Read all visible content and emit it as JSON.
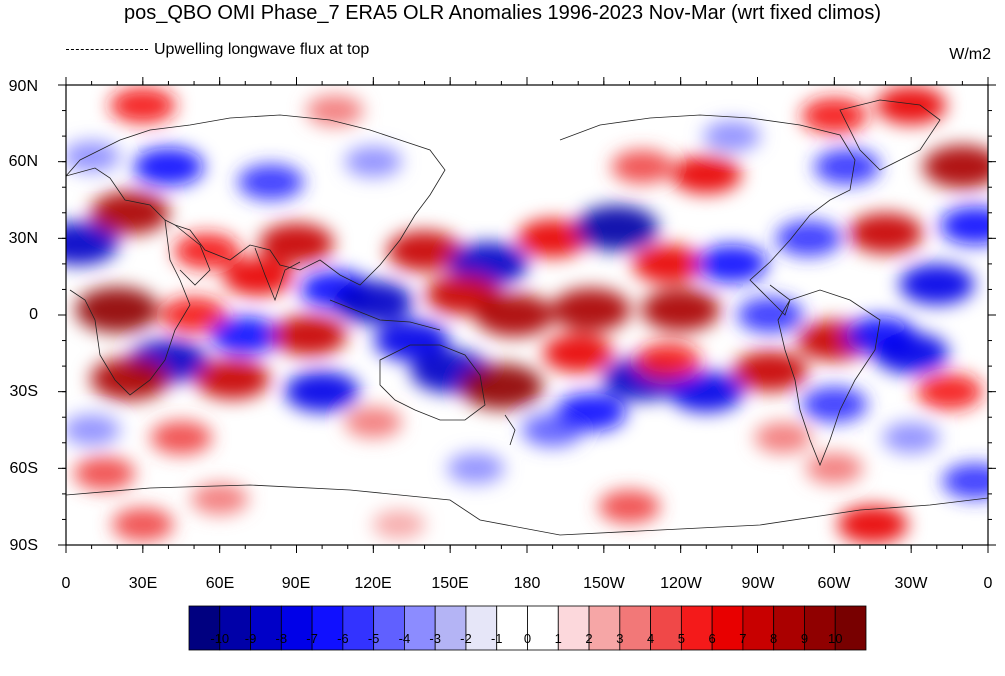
{
  "title": "pos_QBO OMI Phase_7 ERA5 OLR Anomalies 1996-2023 Nov-Mar (wrt fixed climos)",
  "legend_label": "Upwelling longwave flux at top",
  "units": "W/m2",
  "lat_labels": [
    "90N",
    "60N",
    "30N",
    "0",
    "30S",
    "60S",
    "90S"
  ],
  "lon_labels": [
    "0",
    "30E",
    "60E",
    "90E",
    "120E",
    "150E",
    "180",
    "150W",
    "120W",
    "90W",
    "60W",
    "30W",
    "0"
  ],
  "colorbar": {
    "labels": [
      "-10",
      "-9",
      "-8",
      "-7",
      "-6",
      "-5",
      "-4",
      "-3",
      "-2",
      "-1",
      "0",
      "1",
      "2",
      "3",
      "4",
      "5",
      "6",
      "7",
      "8",
      "9",
      "10"
    ],
    "colors": [
      "#000080",
      "#0000a8",
      "#0000c8",
      "#0000e8",
      "#1010ff",
      "#3333ff",
      "#6060ff",
      "#8c8cff",
      "#b4b4f5",
      "#e6e6f8",
      "#ffffff",
      "#ffffff",
      "#fcd8dc",
      "#f6a6a6",
      "#f27878",
      "#f04848",
      "#f41a1a",
      "#e80000",
      "#c80000",
      "#aa0000",
      "#900000",
      "#780000"
    ]
  },
  "map_data": {
    "lon_range": [
      0,
      360
    ],
    "lat_range": [
      -90,
      90
    ],
    "anomaly_blobs": [
      {
        "lon": 30,
        "lat": 82,
        "value": 5
      },
      {
        "lon": 105,
        "lat": 80,
        "value": 3
      },
      {
        "lon": 330,
        "lat": 82,
        "value": 6
      },
      {
        "lon": 300,
        "lat": 78,
        "value": 5
      },
      {
        "lon": 40,
        "lat": 58,
        "value": -6
      },
      {
        "lon": 80,
        "lat": 52,
        "value": -5
      },
      {
        "lon": 120,
        "lat": 60,
        "value": -3
      },
      {
        "lon": 10,
        "lat": 62,
        "value": -3
      },
      {
        "lon": 250,
        "lat": 55,
        "value": 6
      },
      {
        "lon": 225,
        "lat": 58,
        "value": 4
      },
      {
        "lon": 350,
        "lat": 58,
        "value": 8
      },
      {
        "lon": 305,
        "lat": 58,
        "value": -5
      },
      {
        "lon": 260,
        "lat": 70,
        "value": -3
      },
      {
        "lon": 5,
        "lat": 28,
        "value": -8
      },
      {
        "lon": 25,
        "lat": 40,
        "value": 8
      },
      {
        "lon": 55,
        "lat": 25,
        "value": 5
      },
      {
        "lon": 90,
        "lat": 28,
        "value": 7
      },
      {
        "lon": 105,
        "lat": 10,
        "value": -6
      },
      {
        "lon": 75,
        "lat": 15,
        "value": 6
      },
      {
        "lon": 140,
        "lat": 25,
        "value": 7
      },
      {
        "lon": 165,
        "lat": 20,
        "value": -8
      },
      {
        "lon": 190,
        "lat": 30,
        "value": 6
      },
      {
        "lon": 215,
        "lat": 34,
        "value": -9
      },
      {
        "lon": 235,
        "lat": 20,
        "value": 6
      },
      {
        "lon": 260,
        "lat": 20,
        "value": -6
      },
      {
        "lon": 290,
        "lat": 30,
        "value": -5
      },
      {
        "lon": 320,
        "lat": 32,
        "value": 7
      },
      {
        "lon": 355,
        "lat": 35,
        "value": -6
      },
      {
        "lon": 340,
        "lat": 12,
        "value": -7
      },
      {
        "lon": 20,
        "lat": 2,
        "value": 9
      },
      {
        "lon": 50,
        "lat": 0,
        "value": 5
      },
      {
        "lon": 70,
        "lat": -8,
        "value": -6
      },
      {
        "lon": 95,
        "lat": -8,
        "value": 7
      },
      {
        "lon": 120,
        "lat": 5,
        "value": -8
      },
      {
        "lon": 135,
        "lat": -10,
        "value": -7
      },
      {
        "lon": 155,
        "lat": 8,
        "value": 7
      },
      {
        "lon": 175,
        "lat": 0,
        "value": 8
      },
      {
        "lon": 205,
        "lat": 2,
        "value": 8
      },
      {
        "lon": 240,
        "lat": 2,
        "value": 8
      },
      {
        "lon": 275,
        "lat": 0,
        "value": -5
      },
      {
        "lon": 300,
        "lat": -10,
        "value": 7
      },
      {
        "lon": 318,
        "lat": -8,
        "value": -6
      },
      {
        "lon": 40,
        "lat": -18,
        "value": -8
      },
      {
        "lon": 25,
        "lat": -25,
        "value": 8
      },
      {
        "lon": 65,
        "lat": -25,
        "value": 7
      },
      {
        "lon": 100,
        "lat": -30,
        "value": -7
      },
      {
        "lon": 150,
        "lat": -22,
        "value": -8
      },
      {
        "lon": 170,
        "lat": -28,
        "value": 9
      },
      {
        "lon": 200,
        "lat": -15,
        "value": 6
      },
      {
        "lon": 225,
        "lat": -25,
        "value": -8
      },
      {
        "lon": 250,
        "lat": -30,
        "value": -7
      },
      {
        "lon": 235,
        "lat": -18,
        "value": 5
      },
      {
        "lon": 275,
        "lat": -22,
        "value": 7
      },
      {
        "lon": 330,
        "lat": -15,
        "value": -7
      },
      {
        "lon": 300,
        "lat": -35,
        "value": -5
      },
      {
        "lon": 345,
        "lat": -30,
        "value": 5
      },
      {
        "lon": 45,
        "lat": -48,
        "value": 4
      },
      {
        "lon": 10,
        "lat": -45,
        "value": -3
      },
      {
        "lon": 120,
        "lat": -42,
        "value": 3
      },
      {
        "lon": 190,
        "lat": -45,
        "value": -4
      },
      {
        "lon": 205,
        "lat": -38,
        "value": -6
      },
      {
        "lon": 280,
        "lat": -48,
        "value": 3
      },
      {
        "lon": 330,
        "lat": -48,
        "value": -3
      },
      {
        "lon": 300,
        "lat": -60,
        "value": 3
      },
      {
        "lon": 15,
        "lat": -62,
        "value": 4
      },
      {
        "lon": 160,
        "lat": -60,
        "value": -3
      },
      {
        "lon": 355,
        "lat": -65,
        "value": -5
      },
      {
        "lon": 60,
        "lat": -72,
        "value": 3
      },
      {
        "lon": 30,
        "lat": -82,
        "value": 4
      },
      {
        "lon": 220,
        "lat": -75,
        "value": 4
      },
      {
        "lon": 315,
        "lat": -82,
        "value": 6
      },
      {
        "lon": 130,
        "lat": -82,
        "value": 2
      }
    ]
  }
}
